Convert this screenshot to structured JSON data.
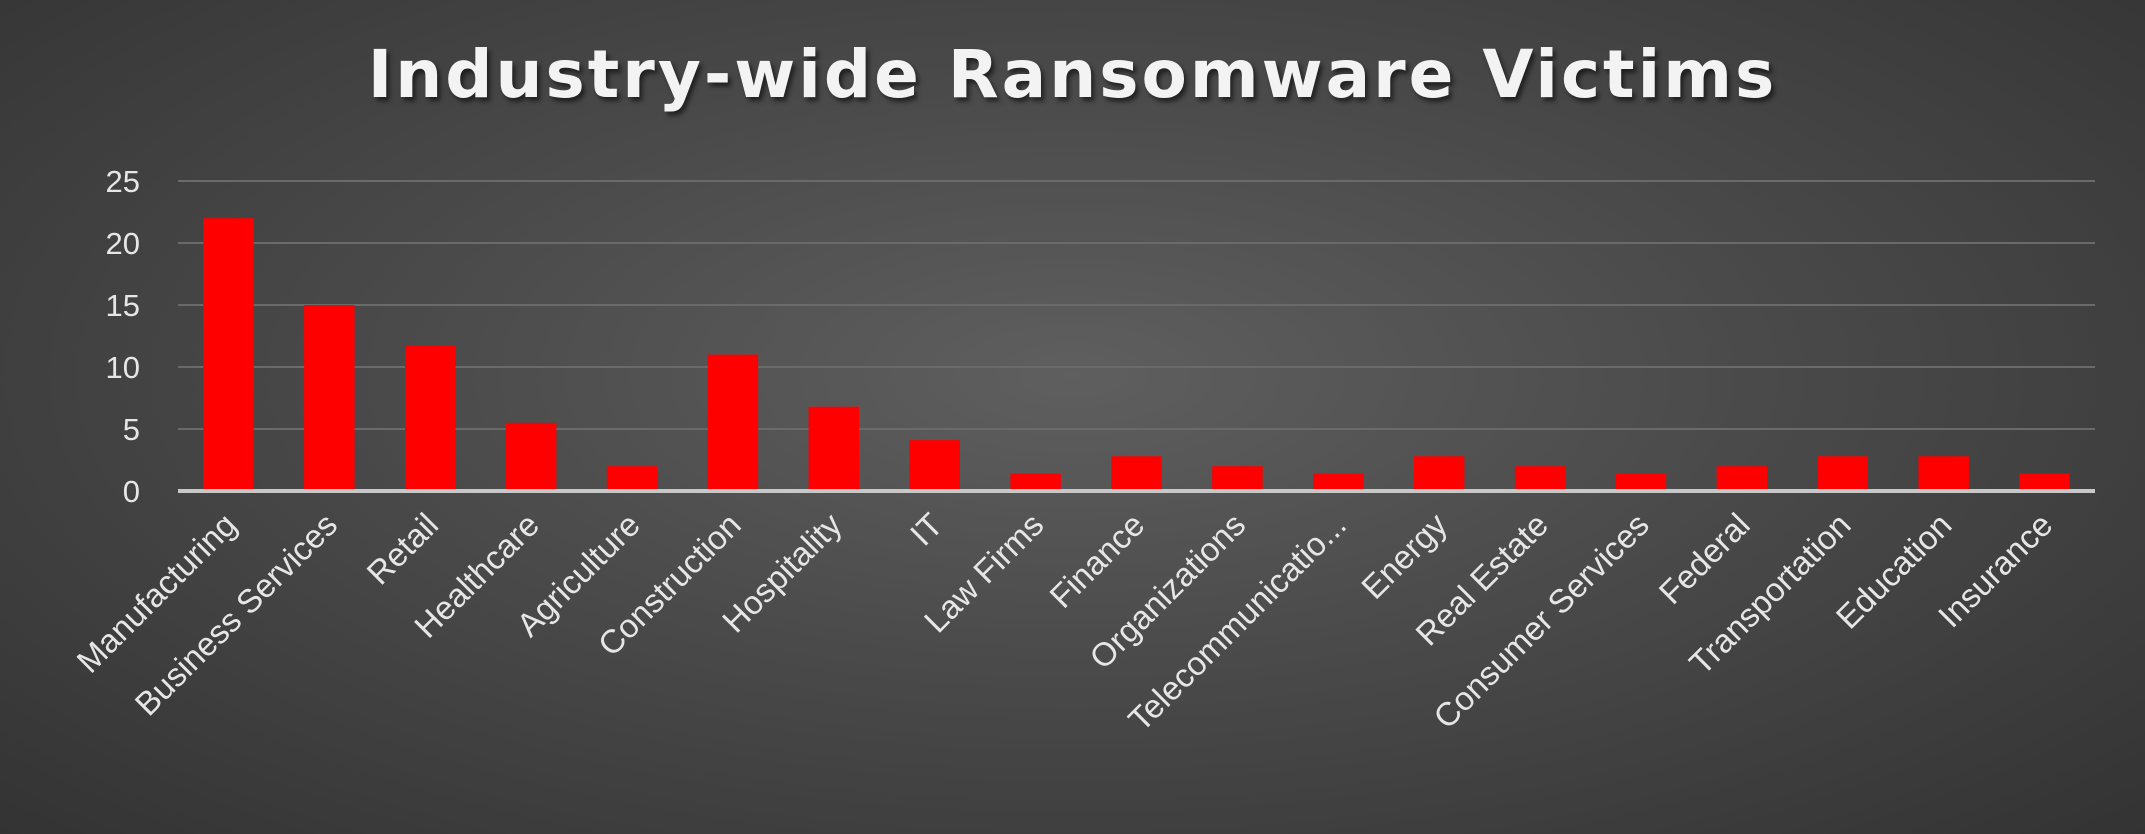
{
  "chart_data": {
    "type": "bar",
    "title": "Industry-wide Ransomware Victims",
    "categories": [
      "Manufacturing",
      "Business Services",
      "Retail",
      "Healthcare",
      "Agriculture",
      "Construction",
      "Hospitality",
      "IT",
      "Law Firms",
      "Finance",
      "Organizations",
      "Telecommunicatio...",
      "Energy",
      "Real Estate",
      "Consumer Services",
      "Federal",
      "Transportation",
      "Education",
      "Insurance"
    ],
    "values": [
      22,
      15,
      11.7,
      5.5,
      2,
      11,
      6.8,
      4.1,
      1.4,
      2.8,
      2,
      1.4,
      2.8,
      2,
      1.4,
      2,
      2.8,
      2.8,
      1.4
    ],
    "ylim": [
      0,
      25
    ],
    "yticks": [
      0,
      5,
      10,
      15,
      20,
      25
    ],
    "grid": true,
    "legend": "none",
    "colors": {
      "bar": "#ff0000",
      "gridline": "#6a6a6a",
      "axis": "#c8c8c8",
      "text": "#e6e6e6"
    }
  }
}
